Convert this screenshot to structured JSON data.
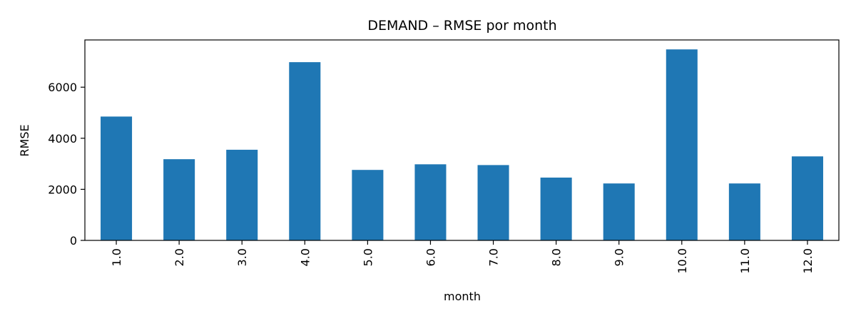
{
  "chart_data": {
    "type": "bar",
    "title": "DEMAND – RMSE por month",
    "xlabel": "month",
    "ylabel": "RMSE",
    "categories": [
      "1.0",
      "2.0",
      "3.0",
      "4.0",
      "5.0",
      "6.0",
      "7.0",
      "8.0",
      "9.0",
      "10.0",
      "11.0",
      "12.0"
    ],
    "values": [
      4850,
      3180,
      3550,
      6980,
      2760,
      2980,
      2950,
      2460,
      2230,
      7480,
      2230,
      3290
    ],
    "ylim": [
      0,
      7850
    ],
    "yticks": [
      0,
      2000,
      4000,
      6000
    ],
    "ytick_labels": [
      "0",
      "2000",
      "4000",
      "6000"
    ],
    "bar_color": "#1f77b4",
    "grid": false,
    "legend": false
  }
}
